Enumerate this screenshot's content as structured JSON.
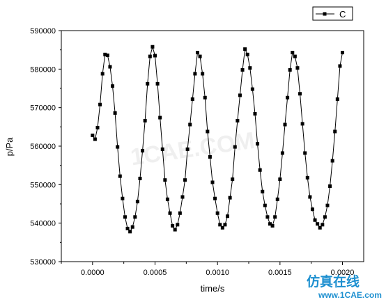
{
  "chart_data": {
    "type": "scatter",
    "line": true,
    "marker": "square",
    "title": "",
    "xlabel": "time/s",
    "ylabel": "p/Pa",
    "xlim": [
      -0.00025,
      0.00217
    ],
    "ylim": [
      530000,
      590000
    ],
    "x_ticks": [
      0.0,
      0.0005,
      0.001,
      0.0015,
      0.002
    ],
    "x_tick_labels": [
      "0.0000",
      "0.0005",
      "0.0010",
      "0.0015",
      "0.0020"
    ],
    "y_ticks": [
      530000,
      540000,
      550000,
      560000,
      570000,
      580000,
      590000
    ],
    "y_tick_labels": [
      "530000",
      "540000",
      "550000",
      "560000",
      "570000",
      "580000",
      "590000"
    ],
    "grid": false,
    "legend_position": "top-right",
    "series": [
      {
        "name": "C",
        "color": "#000000",
        "x": [
          0.0,
          2e-05,
          4e-05,
          6e-05,
          8e-05,
          0.0001,
          0.00012,
          0.00014,
          0.00016,
          0.00018,
          0.0002,
          0.00022,
          0.00024,
          0.00026,
          0.00028,
          0.0003,
          0.00032,
          0.00034,
          0.00036,
          0.00038,
          0.0004,
          0.00042,
          0.00044,
          0.00046,
          0.00048,
          0.0005,
          0.00052,
          0.00054,
          0.00056,
          0.00058,
          0.0006,
          0.00062,
          0.00064,
          0.00066,
          0.00068,
          0.0007,
          0.00072,
          0.00074,
          0.00076,
          0.00078,
          0.0008,
          0.00082,
          0.00084,
          0.00086,
          0.00088,
          0.0009,
          0.00092,
          0.00094,
          0.00096,
          0.00098,
          0.001,
          0.00102,
          0.00104,
          0.00106,
          0.00108,
          0.0011,
          0.00112,
          0.00114,
          0.00116,
          0.00118,
          0.0012,
          0.00122,
          0.00124,
          0.00126,
          0.00128,
          0.0013,
          0.00132,
          0.00134,
          0.00136,
          0.00138,
          0.0014,
          0.00142,
          0.00144,
          0.00146,
          0.00148,
          0.0015,
          0.00152,
          0.00154,
          0.00156,
          0.00158,
          0.0016,
          0.00162,
          0.00164,
          0.00166,
          0.00168,
          0.0017,
          0.00172,
          0.00174,
          0.00176,
          0.00178,
          0.0018,
          0.00182,
          0.00184,
          0.00186,
          0.00188,
          0.0019,
          0.00192,
          0.00194,
          0.00196,
          0.00198,
          0.002
        ],
        "values": [
          562800,
          561800,
          564800,
          570800,
          578800,
          583800,
          583600,
          580600,
          575600,
          568600,
          559800,
          552200,
          546400,
          541600,
          538600,
          537800,
          539000,
          541600,
          545600,
          551600,
          558800,
          566600,
          576200,
          583300,
          585800,
          583500,
          576200,
          567400,
          559200,
          551200,
          546200,
          542600,
          539300,
          538300,
          539600,
          542600,
          546800,
          551200,
          559200,
          565600,
          572200,
          578800,
          584300,
          583300,
          578800,
          572600,
          563800,
          557200,
          550600,
          546400,
          542600,
          539600,
          538800,
          539600,
          541800,
          546600,
          551400,
          559800,
          566600,
          573200,
          579800,
          585200,
          583800,
          580300,
          574800,
          568400,
          560600,
          553800,
          548200,
          544600,
          541600,
          539800,
          539300,
          541600,
          546200,
          551400,
          558200,
          565600,
          572600,
          579800,
          584300,
          583300,
          580300,
          573600,
          565800,
          558200,
          551800,
          546800,
          543600,
          540800,
          539800,
          538800,
          539600,
          541600,
          544600,
          549600,
          556200,
          563800,
          572200,
          580800,
          584300
        ]
      }
    ]
  },
  "watermark": {
    "chinese_text": "仿真在线",
    "url_text": "www.1CAE.com",
    "background_text": "1CAE.COM"
  }
}
